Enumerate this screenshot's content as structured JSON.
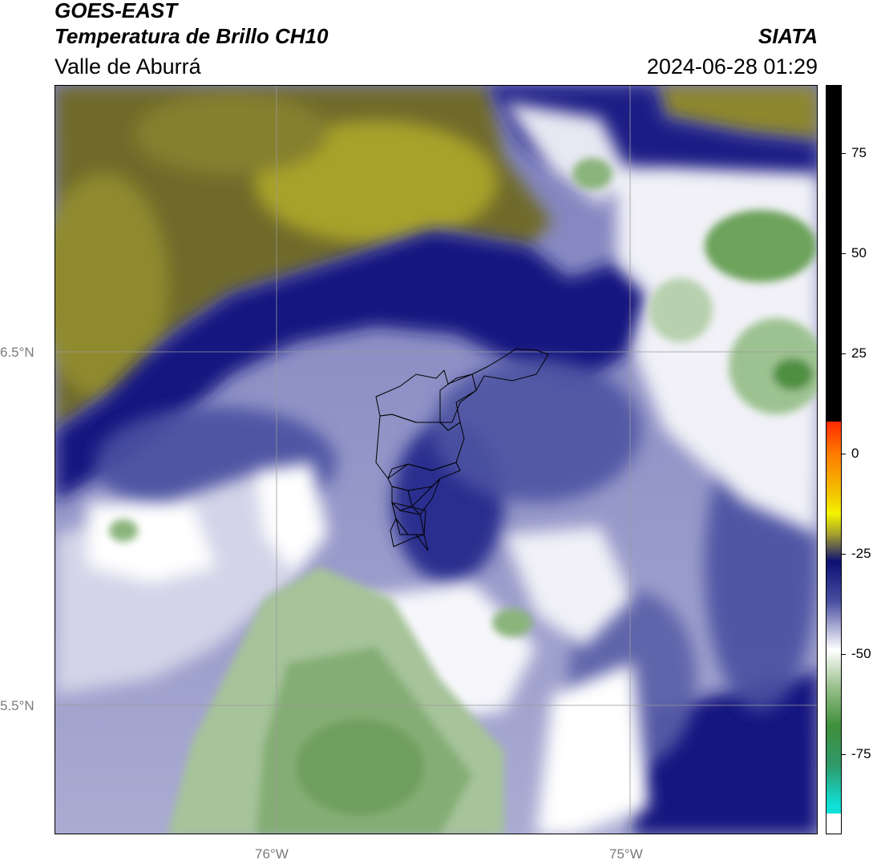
{
  "header": {
    "satellite": "GOES-EAST",
    "product": "Temperatura de Brillo CH10",
    "region": "Valle de Aburrá",
    "agency": "SIATA",
    "datetime": "2024-06-28 01:29"
  },
  "map": {
    "lat_labels": [
      "6.5°N",
      "5.5°N"
    ],
    "lon_labels": [
      "76°W",
      "75°W"
    ],
    "gridlines": true
  },
  "colorbar": {
    "range": [
      -95,
      92
    ],
    "ticks": [
      "75",
      "50",
      "25",
      "0",
      "-25",
      "-50",
      "-75"
    ],
    "tick_values": [
      75,
      50,
      25,
      0,
      -25,
      -50,
      -75
    ]
  },
  "colors": {
    "yellow_olive": "#a8a22c",
    "dark_navy": "#0d0f73",
    "mid_blue": "#4a4fa0",
    "lavender": "#a9abd2",
    "white": "#ffffff",
    "green": "#5e9b4e",
    "grid": "#999999"
  }
}
